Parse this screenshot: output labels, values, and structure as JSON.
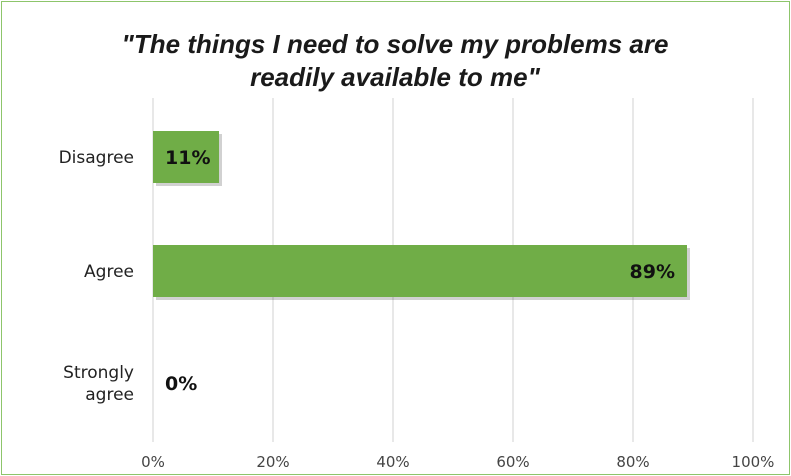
{
  "chart_data": {
    "type": "bar",
    "orientation": "horizontal",
    "title_lines": [
      "\"The things I need to solve my problems are",
      "readily available to me\""
    ],
    "categories": [
      "Disagree",
      "Agree",
      "Strongly agree"
    ],
    "category_label_lines": [
      [
        "Disagree"
      ],
      [
        "Agree"
      ],
      [
        "Strongly",
        "agree"
      ]
    ],
    "values": [
      11,
      89,
      0
    ],
    "data_labels": [
      "11%",
      "89%",
      "0%"
    ],
    "xlim": [
      0,
      100
    ],
    "x_ticks": [
      0,
      20,
      40,
      60,
      80,
      100
    ],
    "x_tick_labels": [
      "0%",
      "20%",
      "40%",
      "60%",
      "80%",
      "100%"
    ],
    "grid": true,
    "legend": "none",
    "bar_color": "#70ad47",
    "frame_color": "#8dc56b",
    "grid_color": "#d9d9d9"
  }
}
